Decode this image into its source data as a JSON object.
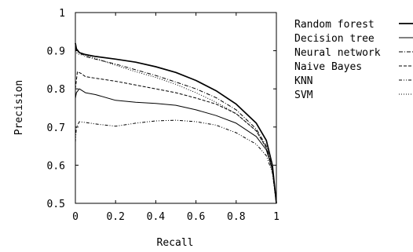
{
  "chart_data": {
    "type": "line",
    "title": "",
    "xlabel": "Recall",
    "ylabel": "Precision",
    "xlim": [
      0,
      1
    ],
    "ylim": [
      0.5,
      1
    ],
    "grid": false,
    "legend_position": "outside-right",
    "x_ticks": [
      {
        "value": 0,
        "label": "0"
      },
      {
        "value": 0.2,
        "label": "0.2"
      },
      {
        "value": 0.4,
        "label": "0.4"
      },
      {
        "value": 0.6,
        "label": "0.6"
      },
      {
        "value": 0.8,
        "label": "0.8"
      },
      {
        "value": 1,
        "label": "1"
      }
    ],
    "y_ticks": [
      {
        "value": 0.5,
        "label": "0.5"
      },
      {
        "value": 0.6,
        "label": "0.6"
      },
      {
        "value": 0.7,
        "label": "0.7"
      },
      {
        "value": 0.8,
        "label": "0.8"
      },
      {
        "value": 0.9,
        "label": "0.9"
      },
      {
        "value": 1,
        "label": "1"
      }
    ],
    "series": [
      {
        "name": "Random forest",
        "style": "solid-thick",
        "points": [
          [
            0,
            0.92
          ],
          [
            0.005,
            0.905
          ],
          [
            0.02,
            0.895
          ],
          [
            0.05,
            0.89
          ],
          [
            0.1,
            0.885
          ],
          [
            0.2,
            0.878
          ],
          [
            0.3,
            0.87
          ],
          [
            0.4,
            0.858
          ],
          [
            0.5,
            0.843
          ],
          [
            0.6,
            0.822
          ],
          [
            0.7,
            0.795
          ],
          [
            0.8,
            0.76
          ],
          [
            0.9,
            0.71
          ],
          [
            0.95,
            0.665
          ],
          [
            0.98,
            0.6
          ],
          [
            1,
            0.5
          ]
        ]
      },
      {
        "name": "Decision tree",
        "style": "solid",
        "points": [
          [
            0,
            0.775
          ],
          [
            0.005,
            0.79
          ],
          [
            0.02,
            0.8
          ],
          [
            0.05,
            0.79
          ],
          [
            0.1,
            0.785
          ],
          [
            0.2,
            0.77
          ],
          [
            0.3,
            0.765
          ],
          [
            0.4,
            0.762
          ],
          [
            0.5,
            0.757
          ],
          [
            0.6,
            0.745
          ],
          [
            0.7,
            0.73
          ],
          [
            0.8,
            0.71
          ],
          [
            0.9,
            0.675
          ],
          [
            0.95,
            0.64
          ],
          [
            0.98,
            0.59
          ],
          [
            1,
            0.5
          ]
        ]
      },
      {
        "name": "Neural network",
        "style": "dash-dot",
        "points": [
          [
            0,
            0.91
          ],
          [
            0.005,
            0.9
          ],
          [
            0.02,
            0.895
          ],
          [
            0.05,
            0.885
          ],
          [
            0.1,
            0.878
          ],
          [
            0.2,
            0.865
          ],
          [
            0.3,
            0.85
          ],
          [
            0.4,
            0.835
          ],
          [
            0.5,
            0.818
          ],
          [
            0.6,
            0.8
          ],
          [
            0.7,
            0.777
          ],
          [
            0.8,
            0.745
          ],
          [
            0.9,
            0.695
          ],
          [
            0.95,
            0.65
          ],
          [
            0.98,
            0.59
          ],
          [
            1,
            0.5
          ]
        ]
      },
      {
        "name": "Naive Bayes",
        "style": "dashed",
        "points": [
          [
            0,
            0.8
          ],
          [
            0.01,
            0.845
          ],
          [
            0.03,
            0.84
          ],
          [
            0.05,
            0.832
          ],
          [
            0.1,
            0.828
          ],
          [
            0.2,
            0.82
          ],
          [
            0.3,
            0.81
          ],
          [
            0.4,
            0.8
          ],
          [
            0.5,
            0.79
          ],
          [
            0.6,
            0.776
          ],
          [
            0.7,
            0.76
          ],
          [
            0.8,
            0.735
          ],
          [
            0.9,
            0.69
          ],
          [
            0.95,
            0.645
          ],
          [
            0.98,
            0.585
          ],
          [
            1,
            0.5
          ]
        ]
      },
      {
        "name": "KNN",
        "style": "dash-dot-dot",
        "points": [
          [
            0,
            0.66
          ],
          [
            0.005,
            0.7
          ],
          [
            0.02,
            0.714
          ],
          [
            0.05,
            0.712
          ],
          [
            0.1,
            0.708
          ],
          [
            0.2,
            0.702
          ],
          [
            0.3,
            0.71
          ],
          [
            0.4,
            0.716
          ],
          [
            0.5,
            0.718
          ],
          [
            0.6,
            0.714
          ],
          [
            0.7,
            0.705
          ],
          [
            0.8,
            0.685
          ],
          [
            0.9,
            0.655
          ],
          [
            0.95,
            0.625
          ],
          [
            0.98,
            0.58
          ],
          [
            1,
            0.5
          ]
        ]
      },
      {
        "name": "SVM",
        "style": "dotted",
        "points": [
          [
            0,
            0.9
          ],
          [
            0.005,
            0.895
          ],
          [
            0.02,
            0.89
          ],
          [
            0.05,
            0.888
          ],
          [
            0.1,
            0.88
          ],
          [
            0.2,
            0.862
          ],
          [
            0.3,
            0.845
          ],
          [
            0.4,
            0.83
          ],
          [
            0.5,
            0.812
          ],
          [
            0.6,
            0.79
          ],
          [
            0.7,
            0.765
          ],
          [
            0.8,
            0.735
          ],
          [
            0.9,
            0.69
          ],
          [
            0.95,
            0.645
          ],
          [
            0.98,
            0.585
          ],
          [
            1,
            0.5
          ]
        ]
      }
    ]
  }
}
